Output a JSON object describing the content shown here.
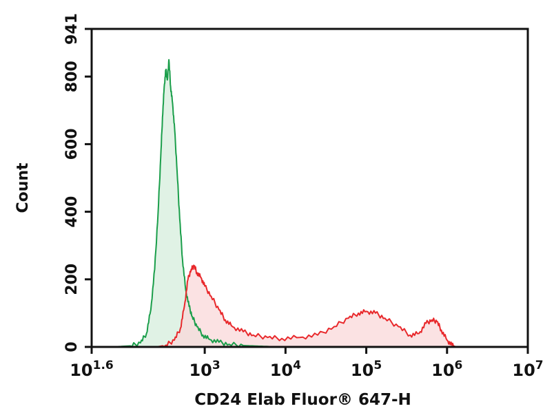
{
  "chart_data": {
    "type": "area",
    "title": "",
    "xlabel": "CD24 Elab Fluor® 647-H",
    "ylabel": "Count",
    "x_scale": "log",
    "xlim": [
      39.8,
      10000000
    ],
    "ylim": [
      0,
      941
    ],
    "grid": false,
    "legend": "none",
    "x_ticks": [
      {
        "value": 39.8,
        "base": "10",
        "exp": "1.6"
      },
      {
        "value": 1000,
        "base": "10",
        "exp": "3"
      },
      {
        "value": 10000,
        "base": "10",
        "exp": "4"
      },
      {
        "value": 100000,
        "base": "10",
        "exp": "5"
      },
      {
        "value": 1000000,
        "base": "10",
        "exp": "6"
      },
      {
        "value": 10000000,
        "base": "10",
        "exp": "7"
      }
    ],
    "y_ticks": [
      {
        "value": 0,
        "label": "0"
      },
      {
        "value": 200,
        "label": "200"
      },
      {
        "value": 400,
        "label": "400"
      },
      {
        "value": 600,
        "label": "600"
      },
      {
        "value": 800,
        "label": "800"
      },
      {
        "value": 941,
        "label": "941"
      }
    ],
    "series": [
      {
        "color": "#1a9e4a",
        "fill": "#d5eedc",
        "points": [
          [
            70,
            0
          ],
          [
            120,
            3
          ],
          [
            160,
            12
          ],
          [
            190,
            40
          ],
          [
            215,
            110
          ],
          [
            240,
            230
          ],
          [
            265,
            400
          ],
          [
            285,
            560
          ],
          [
            300,
            680
          ],
          [
            315,
            770
          ],
          [
            330,
            820
          ],
          [
            345,
            790
          ],
          [
            360,
            850
          ],
          [
            378,
            770
          ],
          [
            400,
            720
          ],
          [
            425,
            640
          ],
          [
            455,
            520
          ],
          [
            490,
            380
          ],
          [
            530,
            260
          ],
          [
            580,
            170
          ],
          [
            640,
            120
          ],
          [
            700,
            90
          ],
          [
            800,
            60
          ],
          [
            950,
            35
          ],
          [
            1150,
            22
          ],
          [
            1500,
            14
          ],
          [
            2000,
            8
          ],
          [
            3000,
            4
          ],
          [
            5000,
            2
          ],
          [
            8000,
            0
          ]
        ]
      },
      {
        "color": "#e8282b",
        "fill": "#f9d8da",
        "points": [
          [
            250,
            0
          ],
          [
            330,
            5
          ],
          [
            420,
            20
          ],
          [
            500,
            55
          ],
          [
            560,
            120
          ],
          [
            620,
            200
          ],
          [
            680,
            230
          ],
          [
            740,
            240
          ],
          [
            800,
            220
          ],
          [
            900,
            205
          ],
          [
            1000,
            180
          ],
          [
            1200,
            150
          ],
          [
            1500,
            110
          ],
          [
            1800,
            80
          ],
          [
            2200,
            60
          ],
          [
            3000,
            45
          ],
          [
            4000,
            35
          ],
          [
            6000,
            28
          ],
          [
            9000,
            25
          ],
          [
            15000,
            28
          ],
          [
            25000,
            35
          ],
          [
            40000,
            60
          ],
          [
            60000,
            85
          ],
          [
            80000,
            100
          ],
          [
            100000,
            105
          ],
          [
            130000,
            100
          ],
          [
            170000,
            85
          ],
          [
            250000,
            60
          ],
          [
            350000,
            35
          ],
          [
            450000,
            40
          ],
          [
            550000,
            70
          ],
          [
            650000,
            80
          ],
          [
            750000,
            75
          ],
          [
            850000,
            50
          ],
          [
            1000000,
            20
          ],
          [
            1150000,
            5
          ],
          [
            1300000,
            0
          ]
        ]
      }
    ]
  }
}
